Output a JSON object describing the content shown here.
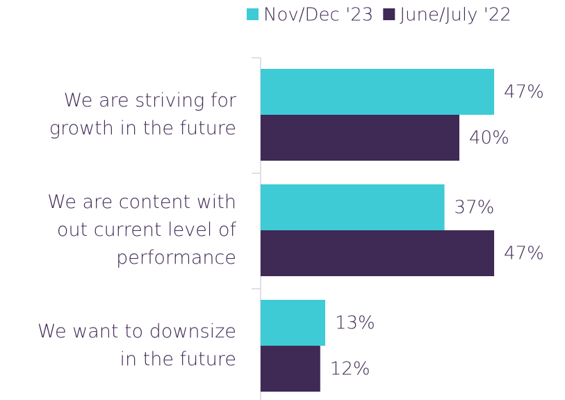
{
  "chart_data": {
    "type": "barh",
    "categories": [
      "We are striving for\ngrowth in the future",
      "We are content with\nout current level of\nperformance",
      "We want to downsize\nin the future"
    ],
    "series": [
      {
        "name": "Nov/Dec '23",
        "color": "#3ecbd6",
        "values": [
          47,
          37,
          13
        ],
        "value_labels": [
          "47%",
          "37%",
          "13%"
        ]
      },
      {
        "name": "June/July '22",
        "color": "#3f2a56",
        "values": [
          40,
          47,
          12
        ],
        "value_labels": [
          "40%",
          "47%",
          "12%"
        ]
      }
    ]
  }
}
